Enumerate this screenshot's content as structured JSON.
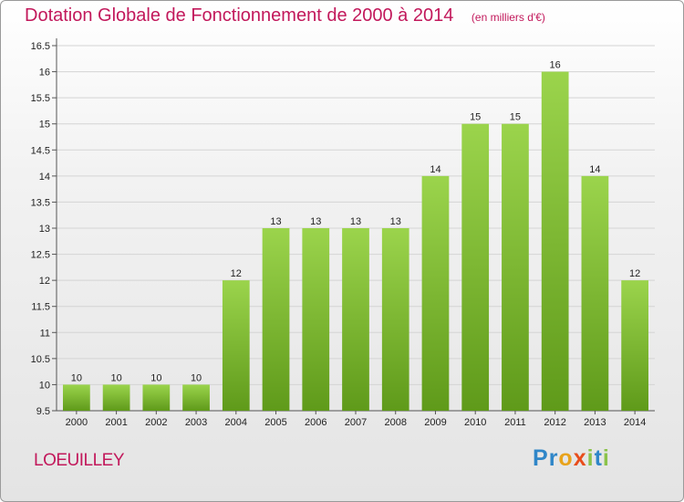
{
  "header": {
    "title": "Dotation Globale de Fonctionnement de 2000 à 2014",
    "unit": "(en milliers d'€)"
  },
  "footer": {
    "commune": "LOEUILLEY"
  },
  "brand": {
    "letters": [
      {
        "char": "P",
        "color": "#2f86c8"
      },
      {
        "char": "r",
        "color": "#2f86c8"
      },
      {
        "char": "o",
        "color": "#e8a31c"
      },
      {
        "char": "x",
        "color": "#e84d1c"
      },
      {
        "char": "i",
        "color": "#8bc34a"
      },
      {
        "char": "t",
        "color": "#2f86c8"
      },
      {
        "char": "i",
        "color": "#8bc34a"
      }
    ]
  },
  "chart_data": {
    "type": "bar",
    "title": "Dotation Globale de Fonctionnement de 2000 à 2014",
    "xlabel": "",
    "ylabel": "",
    "categories": [
      "2000",
      "2001",
      "2002",
      "2003",
      "2004",
      "2005",
      "2006",
      "2007",
      "2008",
      "2009",
      "2010",
      "2011",
      "2012",
      "2013",
      "2014"
    ],
    "values": [
      10,
      10,
      10,
      10,
      12,
      13,
      13,
      13,
      13,
      14,
      15,
      15,
      16,
      14,
      12
    ],
    "ylim": [
      9.5,
      16.5
    ],
    "yticks": [
      "9.5",
      "10",
      "10.5",
      "11",
      "11.5",
      "12",
      "12.5",
      "13",
      "13.5",
      "14",
      "14.5",
      "15",
      "15.5",
      "16",
      "16.5"
    ],
    "grid": true,
    "bar_color": "#7cb82e"
  }
}
